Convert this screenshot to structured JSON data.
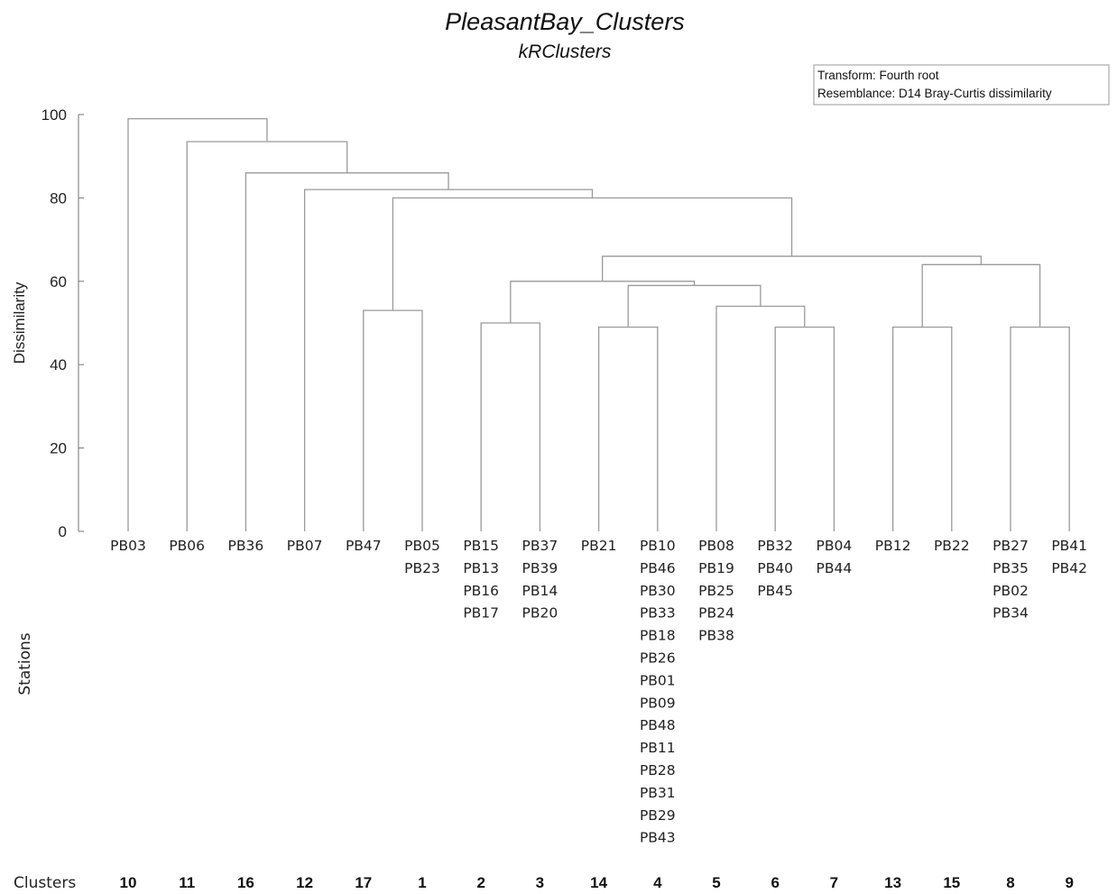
{
  "chart_data": {
    "type": "dendrogram",
    "title": "PleasantBay_Clusters",
    "subtitle": "kRClusters",
    "ylabel": "Dissimilarity",
    "ylim": [
      0,
      100
    ],
    "yticks": [
      0,
      20,
      40,
      60,
      80,
      100
    ],
    "legend": {
      "placement": "top-right",
      "lines": [
        "Transform: Fourth root",
        "Resemblance: D14 Bray-Curtis dissimilarity"
      ]
    },
    "stations_label": "Stations",
    "clusters_label": "Clusters",
    "leaves": [
      {
        "cluster": "10",
        "stations": [
          "PB03"
        ]
      },
      {
        "cluster": "11",
        "stations": [
          "PB06"
        ]
      },
      {
        "cluster": "16",
        "stations": [
          "PB36"
        ]
      },
      {
        "cluster": "12",
        "stations": [
          "PB07"
        ]
      },
      {
        "cluster": "17",
        "stations": [
          "PB47"
        ]
      },
      {
        "cluster": "1",
        "stations": [
          "PB05",
          "PB23"
        ]
      },
      {
        "cluster": "2",
        "stations": [
          "PB15",
          "PB13",
          "PB16",
          "PB17"
        ]
      },
      {
        "cluster": "3",
        "stations": [
          "PB37",
          "PB39",
          "PB14",
          "PB20"
        ]
      },
      {
        "cluster": "14",
        "stations": [
          "PB21"
        ]
      },
      {
        "cluster": "4",
        "stations": [
          "PB10",
          "PB46",
          "PB30",
          "PB33",
          "PB18",
          "PB26",
          "PB01",
          "PB09",
          "PB48",
          "PB11",
          "PB28",
          "PB31",
          "PB29",
          "PB43"
        ]
      },
      {
        "cluster": "5",
        "stations": [
          "PB08",
          "PB19",
          "PB25",
          "PB24",
          "PB38"
        ]
      },
      {
        "cluster": "6",
        "stations": [
          "PB32",
          "PB40",
          "PB45"
        ]
      },
      {
        "cluster": "7",
        "stations": [
          "PB04",
          "PB44"
        ]
      },
      {
        "cluster": "13",
        "stations": [
          "PB12"
        ]
      },
      {
        "cluster": "15",
        "stations": [
          "PB22"
        ]
      },
      {
        "cluster": "8",
        "stations": [
          "PB27",
          "PB35",
          "PB02",
          "PB34"
        ]
      },
      {
        "cluster": "9",
        "stations": [
          "PB41",
          "PB42"
        ]
      }
    ],
    "merges": [
      {
        "a": 4,
        "b": 5,
        "height": 53
      },
      {
        "a": 6,
        "b": 7,
        "height": 50
      },
      {
        "a": 8,
        "b": 9,
        "height": 49
      },
      {
        "a": 11,
        "b": 12,
        "height": 49
      },
      {
        "a": 13,
        "b": 14,
        "height": 49
      },
      {
        "a": 15,
        "b": 16,
        "height": 49
      },
      {
        "a": 10,
        "b": 20,
        "height": 54
      },
      {
        "a": 19,
        "b": 23,
        "height": 59
      },
      {
        "a": 18,
        "b": 24,
        "height": 60
      },
      {
        "a": 21,
        "b": 22,
        "height": 64
      },
      {
        "a": 25,
        "b": 26,
        "height": 66
      },
      {
        "a": 17,
        "b": 27,
        "height": 80
      },
      {
        "a": 3,
        "b": 28,
        "height": 82
      },
      {
        "a": 2,
        "b": 29,
        "height": 86
      },
      {
        "a": 1,
        "b": 30,
        "height": 93.5
      },
      {
        "a": 0,
        "b": 31,
        "height": 99
      }
    ]
  }
}
